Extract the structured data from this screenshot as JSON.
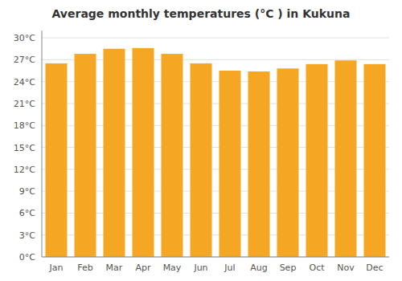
{
  "chart_data": {
    "type": "bar",
    "title": "Average monthly temperatures (°C ) in Kukuna",
    "categories": [
      "Jan",
      "Feb",
      "Mar",
      "Apr",
      "May",
      "Jun",
      "Jul",
      "Aug",
      "Sep",
      "Oct",
      "Nov",
      "Dec"
    ],
    "values": [
      26.5,
      27.8,
      28.5,
      28.6,
      27.8,
      26.5,
      25.5,
      25.4,
      25.8,
      26.4,
      26.9,
      26.4
    ],
    "color": "#F5A623",
    "ylim": [
      0,
      31
    ],
    "yticks": [
      {
        "value": 0,
        "label": "0°C"
      },
      {
        "value": 3,
        "label": "3°C"
      },
      {
        "value": 6,
        "label": "6°C"
      },
      {
        "value": 9,
        "label": "9°C"
      },
      {
        "value": 12,
        "label": "12°C"
      },
      {
        "value": 15,
        "label": "15°C"
      },
      {
        "value": 18,
        "label": "18°C"
      },
      {
        "value": 21,
        "label": "21°C"
      },
      {
        "value": 24,
        "label": "24°C"
      },
      {
        "value": 27,
        "label": "27°C"
      },
      {
        "value": 30,
        "label": "30°C"
      }
    ],
    "grid": true
  }
}
